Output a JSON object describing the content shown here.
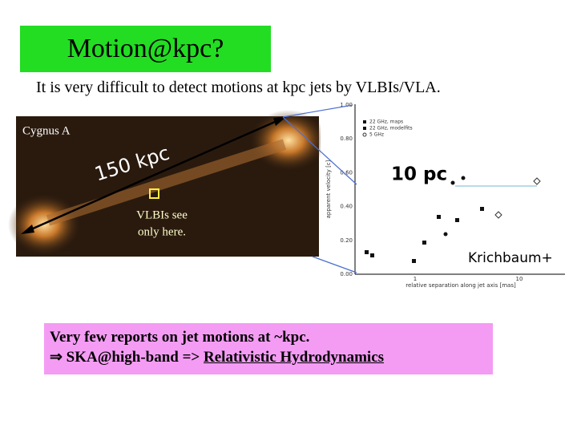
{
  "slide": {
    "title": "Motion@kpc?",
    "subtitle": "It is very difficult to detect motions at kpc jets by VLBIs/VLA.",
    "image_left": {
      "label": "Cygnus A",
      "scale": "150 kpc",
      "note_line1": "VLBIs see",
      "note_line2": "only here."
    },
    "plot": {
      "yticks": [
        "1.00",
        "0.80",
        "0.60",
        "0.40",
        "0.20",
        "0.00"
      ],
      "xticks": [
        "1",
        "10"
      ],
      "ylabel": "apparent velocity [c]",
      "xlabel": "relative separation along jet axis [mas]",
      "legend": [
        "22 GHz, maps",
        "22 GHz, modelfits",
        "5 GHz"
      ],
      "scale": "10 pc",
      "credit": "Krichbaum+"
    },
    "box": {
      "line1": "Very few reports on jet motions at ~kpc.",
      "line2_prefix": "⇒ SKA@high-band => ",
      "line2_underlined": "Relativistic Hydrodynamics"
    }
  }
}
